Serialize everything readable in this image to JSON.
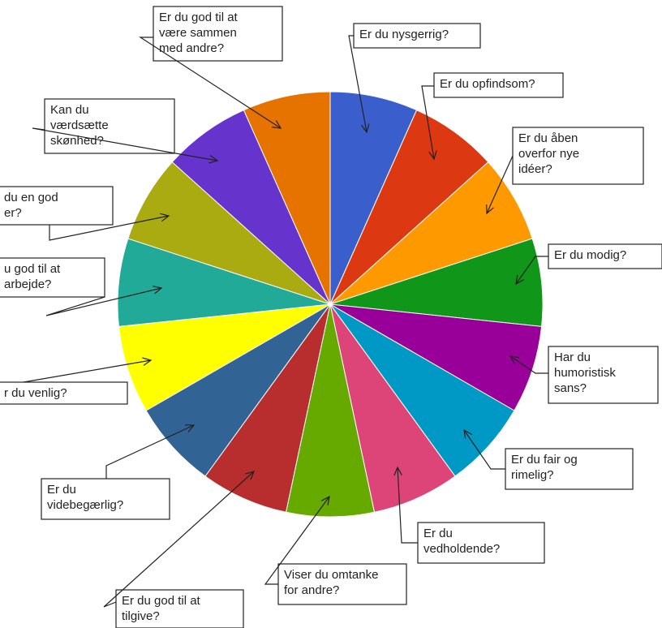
{
  "chart_data": {
    "type": "pie",
    "title": "",
    "legend": "callouts",
    "slices": [
      {
        "label": "Er du nysgerrig?",
        "value": 1,
        "color": "#3a5fcd"
      },
      {
        "label": "Er du opfindsom?",
        "value": 1,
        "color": "#dc3912"
      },
      {
        "label": "Er du åben overfor nye idéer?",
        "value": 1,
        "color": "#ff9900"
      },
      {
        "label": "Er du modig?",
        "value": 1,
        "color": "#109618"
      },
      {
        "label": "Har du humoristisk sans?",
        "value": 1,
        "color": "#990099"
      },
      {
        "label": "Er du fair og rimelig?",
        "value": 1,
        "color": "#0099c6"
      },
      {
        "label": "Er du vedholdende?",
        "value": 1,
        "color": "#dd4477"
      },
      {
        "label": "Viser du omtanke for andre?",
        "value": 1,
        "color": "#66aa00"
      },
      {
        "label": "Er du god til at tilgive?",
        "value": 1,
        "color": "#b82e2e"
      },
      {
        "label": "Er du videbegærlig?",
        "value": 1,
        "color": "#316395"
      },
      {
        "label": "Er du venlig?",
        "value": 1,
        "color": "#ffff00"
      },
      {
        "label": "Er du god til at samarbejde?",
        "value": 1,
        "color": "#22aa99"
      },
      {
        "label": "Er du en god leder?",
        "value": 1,
        "color": "#aaaa11"
      },
      {
        "label": "Kan du værdsætte skønhed?",
        "value": 1,
        "color": "#6633cc"
      },
      {
        "label": "Er du god til at være sammen med andre?",
        "value": 1,
        "color": "#e67300"
      }
    ],
    "callouts": [
      {
        "lines": [
          "Er du nysgerrig?"
        ]
      },
      {
        "lines": [
          "Er du opfindsom?"
        ]
      },
      {
        "lines": [
          "Er du åben",
          "overfor nye",
          "idéer?"
        ]
      },
      {
        "lines": [
          "Er du modig?"
        ]
      },
      {
        "lines": [
          "Har du",
          "humoristisk",
          "sans?"
        ]
      },
      {
        "lines": [
          "Er du fair og",
          "rimelig?"
        ]
      },
      {
        "lines": [
          "Er du",
          "vedholdende?"
        ]
      },
      {
        "lines": [
          "Viser du omtanke",
          "for andre?"
        ]
      },
      {
        "lines": [
          "Er du god til at",
          "tilgive?"
        ]
      },
      {
        "lines": [
          "Er du",
          "videbegærlig?"
        ]
      },
      {
        "lines": [
          "r du venlig?"
        ]
      },
      {
        "lines": [
          "u god til at",
          "arbejde?"
        ]
      },
      {
        "lines": [
          "du en god",
          "er?"
        ]
      },
      {
        "lines": [
          "Kan du",
          "værdsætte",
          "skønhed?"
        ]
      },
      {
        "lines": [
          "Er du god til at",
          "være sammen",
          "med andre?"
        ]
      }
    ]
  }
}
